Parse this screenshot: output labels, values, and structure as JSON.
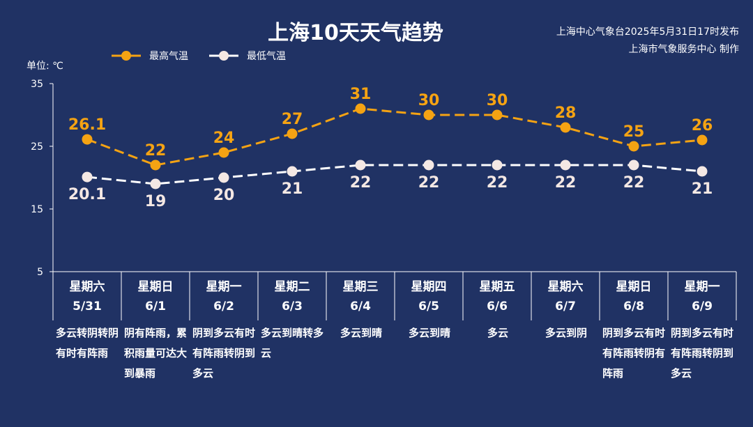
{
  "header": {
    "title": "上海10天天气趋势",
    "issuer_line1": "上海中心气象台2025年5月31日17时发布",
    "issuer_line2": "上海市气象服务中心 制作",
    "unit": "单位: ℃"
  },
  "legend": {
    "high_label": "最高气温",
    "low_label": "最低气温"
  },
  "colors": {
    "background": "#203264",
    "high": "#f5a313",
    "low": "#ffffff",
    "axis": "#ffffff"
  },
  "chart_data": {
    "type": "line",
    "y_ticks": [
      "35",
      "25",
      "15",
      "5"
    ],
    "ylim": [
      5,
      35
    ],
    "categories": [
      "星期六",
      "星期日",
      "星期一",
      "星期二",
      "星期三",
      "星期四",
      "星期五",
      "星期六",
      "星期日",
      "星期一"
    ],
    "dates": [
      "5/31",
      "6/1",
      "6/2",
      "6/3",
      "6/4",
      "6/5",
      "6/6",
      "6/7",
      "6/8",
      "6/9"
    ],
    "series": [
      {
        "name": "最高气温",
        "values": [
          26.1,
          22,
          24,
          27,
          31,
          30,
          30,
          28,
          25,
          26
        ],
        "labels": [
          "26.1",
          "22",
          "24",
          "27",
          "31",
          "30",
          "30",
          "28",
          "25",
          "26"
        ]
      },
      {
        "name": "最低气温",
        "values": [
          20.1,
          19,
          20,
          21,
          22,
          22,
          22,
          22,
          22,
          21
        ],
        "labels": [
          "20.1",
          "19",
          "20",
          "21",
          "22",
          "22",
          "22",
          "22",
          "22",
          "21"
        ]
      }
    ]
  },
  "forecast": [
    "多云转阴转阴有时有阵雨",
    "阴有阵雨，累积雨量可达大到暴雨",
    "阴到多云有时有阵雨转阴到多云",
    "多云到晴转多云",
    "多云到晴",
    "多云到晴",
    "多云",
    "多云到阴",
    "阴到多云有时有阵雨转阴有阵雨",
    "阴到多云有时有阵雨转阴到多云"
  ]
}
